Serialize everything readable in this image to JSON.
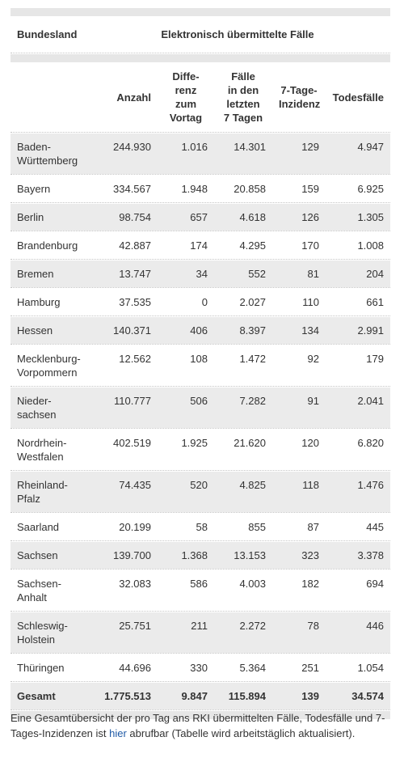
{
  "header": {
    "col_bundesland": "Bundesland",
    "group_title": "Elektronisch übermittelte Fälle",
    "col_anzahl": "Anzahl",
    "col_differenz": "Diffe-\nrenz\nzum\nVortag",
    "col_faelle7": "Fälle\nin den\nletzten\n7 Tagen",
    "col_inzidenz": "7-Tage-\nInzidenz",
    "col_todesfaelle": "Todesfälle"
  },
  "rows": [
    {
      "land": "Baden-\nWürttemberg",
      "anzahl": "244.930",
      "differenz": "1.016",
      "faelle7": "14.301",
      "inzidenz": "129",
      "todesfaelle": "4.947"
    },
    {
      "land": "Bayern",
      "anzahl": "334.567",
      "differenz": "1.948",
      "faelle7": "20.858",
      "inzidenz": "159",
      "todesfaelle": "6.925"
    },
    {
      "land": "Berlin",
      "anzahl": "98.754",
      "differenz": "657",
      "faelle7": "4.618",
      "inzidenz": "126",
      "todesfaelle": "1.305"
    },
    {
      "land": "Brandenburg",
      "anzahl": "42.887",
      "differenz": "174",
      "faelle7": "4.295",
      "inzidenz": "170",
      "todesfaelle": "1.008"
    },
    {
      "land": "Bremen",
      "anzahl": "13.747",
      "differenz": "34",
      "faelle7": "552",
      "inzidenz": "81",
      "todesfaelle": "204"
    },
    {
      "land": "Hamburg",
      "anzahl": "37.535",
      "differenz": "0",
      "faelle7": "2.027",
      "inzidenz": "110",
      "todesfaelle": "661"
    },
    {
      "land": "Hessen",
      "anzahl": "140.371",
      "differenz": "406",
      "faelle7": "8.397",
      "inzidenz": "134",
      "todesfaelle": "2.991"
    },
    {
      "land": "Mecklenburg-\nVorpommern",
      "anzahl": "12.562",
      "differenz": "108",
      "faelle7": "1.472",
      "inzidenz": "92",
      "todesfaelle": "179"
    },
    {
      "land": "Nieder-\nsachsen",
      "anzahl": "110.777",
      "differenz": "506",
      "faelle7": "7.282",
      "inzidenz": "91",
      "todesfaelle": "2.041"
    },
    {
      "land": "Nordrhein-\nWestfalen",
      "anzahl": "402.519",
      "differenz": "1.925",
      "faelle7": "21.620",
      "inzidenz": "120",
      "todesfaelle": "6.820"
    },
    {
      "land": "Rheinland-\nPfalz",
      "anzahl": "74.435",
      "differenz": "520",
      "faelle7": "4.825",
      "inzidenz": "118",
      "todesfaelle": "1.476"
    },
    {
      "land": "Saarland",
      "anzahl": "20.199",
      "differenz": "58",
      "faelle7": "855",
      "inzidenz": "87",
      "todesfaelle": "445"
    },
    {
      "land": "Sachsen",
      "anzahl": "139.700",
      "differenz": "1.368",
      "faelle7": "13.153",
      "inzidenz": "323",
      "todesfaelle": "3.378"
    },
    {
      "land": "Sachsen-\nAnhalt",
      "anzahl": "32.083",
      "differenz": "586",
      "faelle7": "4.003",
      "inzidenz": "182",
      "todesfaelle": "694"
    },
    {
      "land": "Schleswig-\nHolstein",
      "anzahl": "25.751",
      "differenz": "211",
      "faelle7": "2.272",
      "inzidenz": "78",
      "todesfaelle": "446"
    },
    {
      "land": "Thüringen",
      "anzahl": "44.696",
      "differenz": "330",
      "faelle7": "5.364",
      "inzidenz": "251",
      "todesfaelle": "1.054"
    }
  ],
  "total": {
    "land": "Gesamt",
    "anzahl": "1.775.513",
    "differenz": "9.847",
    "faelle7": "115.894",
    "inzidenz": "139",
    "todesfaelle": "34.574"
  },
  "note": {
    "before": "Eine Gesamtübersicht der pro Tag ans RKI übermittelten Fälle, Todesfälle und 7-Tages-Inzidenzen ist ",
    "link": "hier",
    "after": " abrufbar (Tabelle wird arbeitstäglich aktualisiert)."
  },
  "colors": {
    "row_shade": "#ebebeb",
    "band": "#e6e6e6",
    "link": "#1f5aa6"
  }
}
